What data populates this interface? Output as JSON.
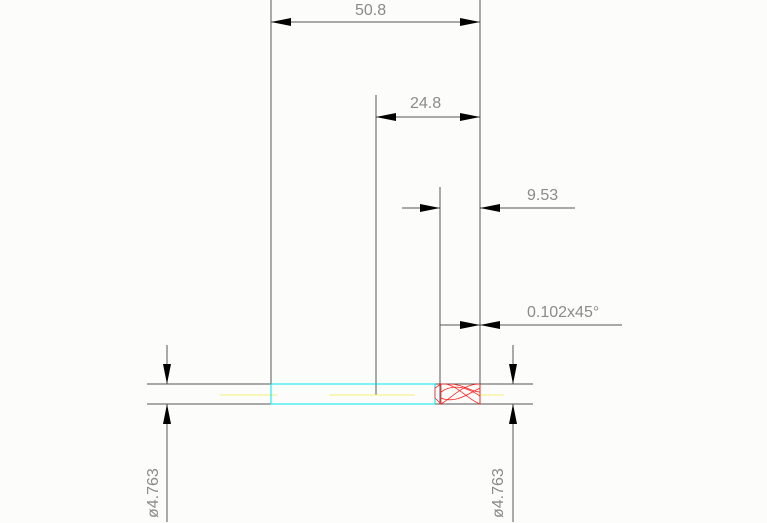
{
  "dimensions": {
    "overall_length": "50.8",
    "flute_length": "24.8",
    "cutting_length": "9.53",
    "chamfer": "0.102x45°",
    "diameter_left": "ø4.763",
    "diameter_right": "ø4.763"
  },
  "colors": {
    "line": "#555555",
    "text": "#8a8a8a",
    "shank": "#00e5ee",
    "flutes": "#ff2020",
    "centerline": "#f5f07a",
    "background": "#fcfdfa"
  }
}
